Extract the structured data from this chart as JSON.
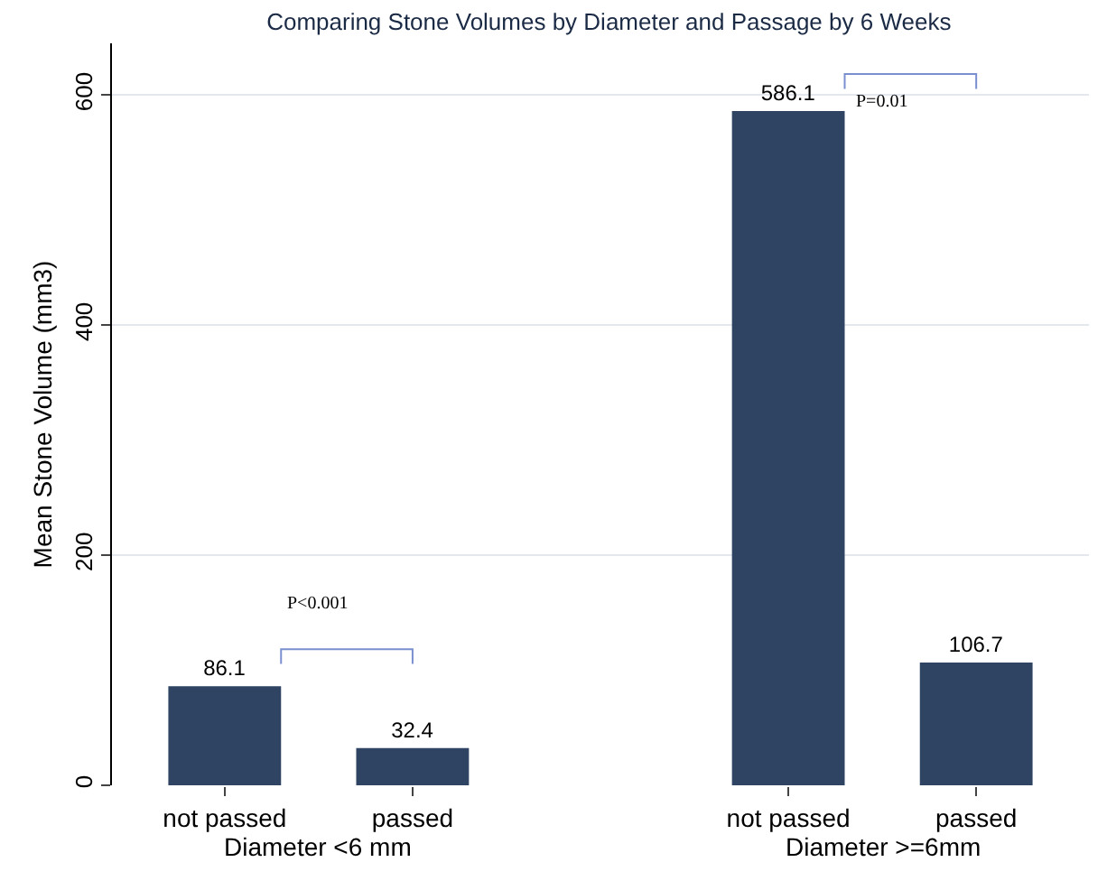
{
  "chart_data": {
    "type": "bar",
    "title": "Comparing Stone Volumes by Diameter and Passage by 6 Weeks",
    "ylabel": "Mean Stone Volume (mm3)",
    "categories": [
      "not passed",
      "passed",
      null,
      "not passed",
      "passed"
    ],
    "values": [
      86.1,
      32.4,
      null,
      586.1,
      106.7
    ],
    "color": "#2e4462",
    "ylim": [
      0,
      645
    ],
    "yticks": [
      0,
      200,
      400,
      600
    ],
    "grid": "y",
    "data_labels": true,
    "annotations": [
      "P<0.001",
      "P=0.01",
      "Diameter <6 mm",
      "Diameter >=6mm"
    ]
  }
}
